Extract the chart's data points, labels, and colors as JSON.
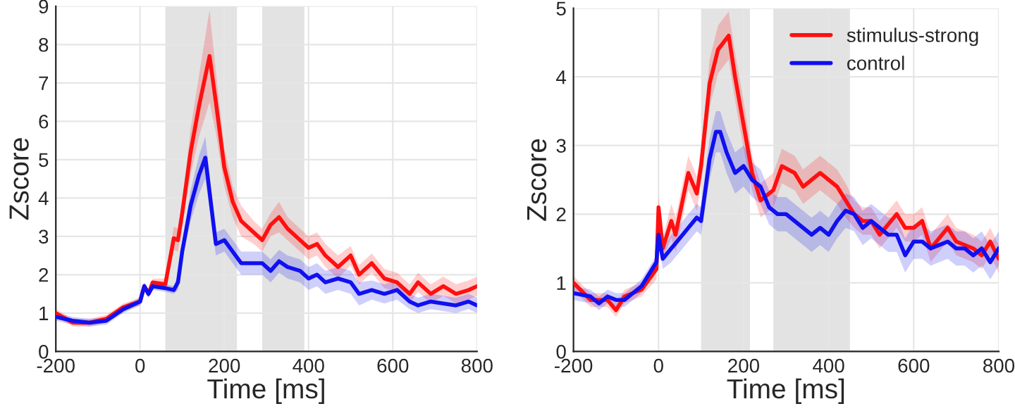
{
  "chart_data": [
    {
      "type": "line",
      "xlabel": "Time [ms]",
      "ylabel": "Zscore",
      "xlim": [
        -200,
        800
      ],
      "ylim": [
        0,
        9
      ],
      "xticks": [
        -200,
        0,
        200,
        400,
        600,
        800
      ],
      "yticks": [
        0,
        1,
        2,
        3,
        4,
        5,
        6,
        7,
        8,
        9
      ],
      "grid": true,
      "legend": false,
      "bands": [
        {
          "axis": "x",
          "from": 60,
          "to": 230,
          "color": "#e3e3e3"
        },
        {
          "axis": "x",
          "from": 290,
          "to": 390,
          "color": "#e3e3e3"
        }
      ],
      "series": [
        {
          "color": "#ff1010",
          "x": [
            -200,
            -160,
            -120,
            -80,
            -40,
            0,
            10,
            20,
            30,
            60,
            80,
            90,
            100,
            120,
            140,
            165,
            180,
            200,
            220,
            240,
            270,
            290,
            310,
            330,
            350,
            380,
            400,
            420,
            440,
            470,
            500,
            520,
            550,
            580,
            610,
            640,
            660,
            690,
            720,
            750,
            780,
            800
          ],
          "values": [
            1.0,
            0.75,
            0.75,
            0.85,
            1.15,
            1.3,
            1.7,
            1.5,
            1.8,
            1.75,
            2.95,
            2.9,
            3.6,
            5.2,
            6.4,
            7.7,
            6.5,
            4.8,
            3.9,
            3.4,
            3.1,
            2.9,
            3.3,
            3.5,
            3.2,
            2.9,
            2.7,
            2.8,
            2.5,
            2.2,
            2.5,
            2.0,
            2.3,
            1.9,
            1.8,
            1.5,
            1.8,
            1.5,
            1.7,
            1.5,
            1.6,
            1.7
          ],
          "lower": [
            0.9,
            0.65,
            0.65,
            0.75,
            1.05,
            1.2,
            1.6,
            1.4,
            1.7,
            1.6,
            2.65,
            2.6,
            3.3,
            4.6,
            5.6,
            6.5,
            5.7,
            4.3,
            3.5,
            3.0,
            2.8,
            2.6,
            3.0,
            3.1,
            2.9,
            2.6,
            2.4,
            2.5,
            2.2,
            1.9,
            2.25,
            1.75,
            2.05,
            1.65,
            1.55,
            1.25,
            1.55,
            1.25,
            1.45,
            1.25,
            1.35,
            1.45
          ],
          "upper": [
            1.1,
            0.85,
            0.85,
            0.95,
            1.25,
            1.4,
            1.8,
            1.6,
            1.9,
            1.9,
            3.25,
            3.2,
            3.9,
            5.8,
            7.2,
            8.9,
            7.3,
            5.3,
            4.3,
            3.8,
            3.4,
            3.2,
            3.6,
            3.9,
            3.5,
            3.2,
            3.0,
            3.1,
            2.8,
            2.5,
            2.75,
            2.25,
            2.55,
            2.15,
            2.05,
            1.75,
            2.05,
            1.75,
            1.95,
            1.75,
            1.85,
            1.95
          ]
        },
        {
          "color": "#1010f0",
          "x": [
            -200,
            -160,
            -120,
            -80,
            -40,
            0,
            10,
            20,
            30,
            60,
            80,
            90,
            100,
            120,
            140,
            155,
            180,
            200,
            220,
            240,
            270,
            290,
            310,
            330,
            350,
            380,
            400,
            420,
            440,
            470,
            500,
            520,
            550,
            580,
            610,
            640,
            660,
            690,
            720,
            750,
            780,
            800
          ],
          "values": [
            0.9,
            0.8,
            0.75,
            0.8,
            1.1,
            1.3,
            1.7,
            1.5,
            1.7,
            1.65,
            1.6,
            1.8,
            2.6,
            3.8,
            4.6,
            5.05,
            2.8,
            2.9,
            2.6,
            2.3,
            2.3,
            2.3,
            2.1,
            2.35,
            2.2,
            2.1,
            1.9,
            2.0,
            1.8,
            1.9,
            1.8,
            1.5,
            1.6,
            1.5,
            1.6,
            1.3,
            1.2,
            1.3,
            1.25,
            1.2,
            1.3,
            1.2
          ],
          "lower": [
            0.8,
            0.7,
            0.65,
            0.7,
            1.0,
            1.2,
            1.6,
            1.4,
            1.6,
            1.55,
            1.5,
            1.6,
            2.4,
            3.4,
            4.1,
            4.5,
            2.5,
            2.6,
            2.3,
            2.0,
            2.0,
            2.0,
            1.8,
            2.05,
            1.9,
            1.8,
            1.6,
            1.7,
            1.5,
            1.6,
            1.5,
            1.2,
            1.35,
            1.25,
            1.35,
            1.1,
            1.0,
            1.1,
            1.05,
            1.0,
            1.1,
            1.0
          ],
          "upper": [
            1.0,
            0.9,
            0.85,
            0.9,
            1.2,
            1.4,
            1.8,
            1.6,
            1.8,
            1.75,
            1.7,
            2.0,
            2.8,
            4.2,
            5.1,
            5.6,
            3.1,
            3.2,
            2.9,
            2.6,
            2.6,
            2.6,
            2.4,
            2.65,
            2.5,
            2.4,
            2.2,
            2.3,
            2.1,
            2.2,
            2.1,
            1.8,
            1.85,
            1.75,
            1.85,
            1.5,
            1.4,
            1.5,
            1.45,
            1.4,
            1.5,
            1.4
          ]
        }
      ]
    },
    {
      "type": "line",
      "xlabel": "Time [ms]",
      "ylabel": "Zscore",
      "xlim": [
        -200,
        800
      ],
      "ylim": [
        0,
        5
      ],
      "xticks": [
        -200,
        0,
        200,
        400,
        600,
        800
      ],
      "yticks": [
        0,
        1,
        2,
        3,
        4,
        5
      ],
      "grid": true,
      "legend": "top right",
      "bands": [
        {
          "axis": "x",
          "from": 100,
          "to": 215,
          "color": "#e3e3e3"
        },
        {
          "axis": "x",
          "from": 270,
          "to": 450,
          "color": "#e3e3e3"
        }
      ],
      "series": [
        {
          "name": "stimulus-strong",
          "color": "#ff1010",
          "x": [
            -200,
            -160,
            -120,
            -100,
            -80,
            -40,
            -5,
            0,
            10,
            30,
            40,
            60,
            70,
            90,
            100,
            120,
            140,
            165,
            180,
            200,
            220,
            240,
            270,
            290,
            320,
            340,
            360,
            380,
            400,
            420,
            440,
            460,
            480,
            500,
            520,
            560,
            580,
            600,
            620,
            640,
            680,
            700,
            740,
            760,
            780,
            800
          ],
          "values": [
            1.0,
            0.75,
            0.75,
            0.6,
            0.8,
            0.9,
            1.2,
            2.1,
            1.5,
            1.9,
            1.7,
            2.3,
            2.6,
            2.3,
            2.7,
            3.9,
            4.4,
            4.6,
            4.0,
            3.3,
            2.6,
            2.2,
            2.35,
            2.7,
            2.6,
            2.4,
            2.5,
            2.6,
            2.5,
            2.4,
            2.2,
            2.0,
            1.9,
            1.9,
            1.7,
            2.0,
            1.8,
            1.8,
            1.9,
            1.5,
            1.8,
            1.6,
            1.5,
            1.4,
            1.6,
            1.35
          ],
          "lower": [
            0.9,
            0.65,
            0.65,
            0.5,
            0.7,
            0.8,
            1.05,
            1.95,
            1.35,
            1.65,
            1.45,
            2.05,
            2.35,
            2.05,
            2.45,
            3.55,
            4.05,
            4.25,
            3.65,
            2.95,
            2.35,
            1.95,
            2.1,
            2.45,
            2.35,
            2.15,
            2.25,
            2.35,
            2.25,
            2.15,
            1.95,
            1.8,
            1.7,
            1.7,
            1.5,
            1.8,
            1.6,
            1.6,
            1.7,
            1.3,
            1.6,
            1.4,
            1.3,
            1.2,
            1.4,
            1.15
          ],
          "upper": [
            1.1,
            0.85,
            0.85,
            0.7,
            0.9,
            1.0,
            1.35,
            2.25,
            1.65,
            2.15,
            1.95,
            2.55,
            2.85,
            2.55,
            2.95,
            4.25,
            4.75,
            4.95,
            4.35,
            3.65,
            2.85,
            2.45,
            2.6,
            2.95,
            2.85,
            2.65,
            2.75,
            2.85,
            2.75,
            2.65,
            2.45,
            2.2,
            2.1,
            2.1,
            1.9,
            2.2,
            2.0,
            2.0,
            2.1,
            1.7,
            2.0,
            1.8,
            1.7,
            1.6,
            1.8,
            1.55
          ]
        },
        {
          "name": "control",
          "color": "#1010f0",
          "x": [
            -200,
            -160,
            -140,
            -120,
            -100,
            -80,
            -40,
            -5,
            0,
            10,
            30,
            50,
            70,
            90,
            100,
            120,
            135,
            145,
            160,
            180,
            200,
            220,
            240,
            260,
            280,
            300,
            320,
            340,
            360,
            380,
            400,
            420,
            440,
            460,
            480,
            500,
            520,
            540,
            560,
            580,
            600,
            620,
            640,
            660,
            680,
            700,
            720,
            740,
            760,
            780,
            800
          ],
          "values": [
            0.85,
            0.8,
            0.7,
            0.8,
            0.75,
            0.75,
            0.95,
            1.3,
            1.7,
            1.35,
            1.5,
            1.65,
            1.8,
            1.95,
            1.9,
            2.8,
            3.2,
            3.2,
            2.9,
            2.6,
            2.7,
            2.5,
            2.4,
            2.1,
            2.0,
            2.0,
            1.9,
            1.8,
            1.7,
            1.8,
            1.7,
            1.9,
            2.05,
            2.0,
            1.8,
            1.9,
            1.8,
            1.7,
            1.7,
            1.4,
            1.6,
            1.6,
            1.5,
            1.55,
            1.6,
            1.5,
            1.5,
            1.4,
            1.5,
            1.3,
            1.5
          ],
          "lower": [
            0.75,
            0.7,
            0.6,
            0.7,
            0.65,
            0.65,
            0.85,
            1.2,
            1.55,
            1.2,
            1.3,
            1.45,
            1.6,
            1.75,
            1.7,
            2.5,
            2.9,
            2.9,
            2.6,
            2.3,
            2.4,
            2.25,
            2.15,
            1.85,
            1.75,
            1.75,
            1.65,
            1.55,
            1.45,
            1.55,
            1.45,
            1.65,
            1.8,
            1.75,
            1.55,
            1.65,
            1.55,
            1.45,
            1.45,
            1.15,
            1.35,
            1.35,
            1.25,
            1.3,
            1.35,
            1.25,
            1.25,
            1.15,
            1.25,
            1.05,
            1.25
          ],
          "upper": [
            0.95,
            0.9,
            0.8,
            0.9,
            0.85,
            0.85,
            1.05,
            1.4,
            1.85,
            1.5,
            1.7,
            1.85,
            2.0,
            2.15,
            2.1,
            3.1,
            3.5,
            3.5,
            3.2,
            2.9,
            3.0,
            2.75,
            2.65,
            2.35,
            2.25,
            2.25,
            2.15,
            2.05,
            1.95,
            2.05,
            1.95,
            2.15,
            2.3,
            2.25,
            2.05,
            2.15,
            2.05,
            1.95,
            1.95,
            1.65,
            1.85,
            1.85,
            1.75,
            1.8,
            1.85,
            1.75,
            1.75,
            1.65,
            1.75,
            1.55,
            1.75
          ]
        }
      ]
    }
  ]
}
